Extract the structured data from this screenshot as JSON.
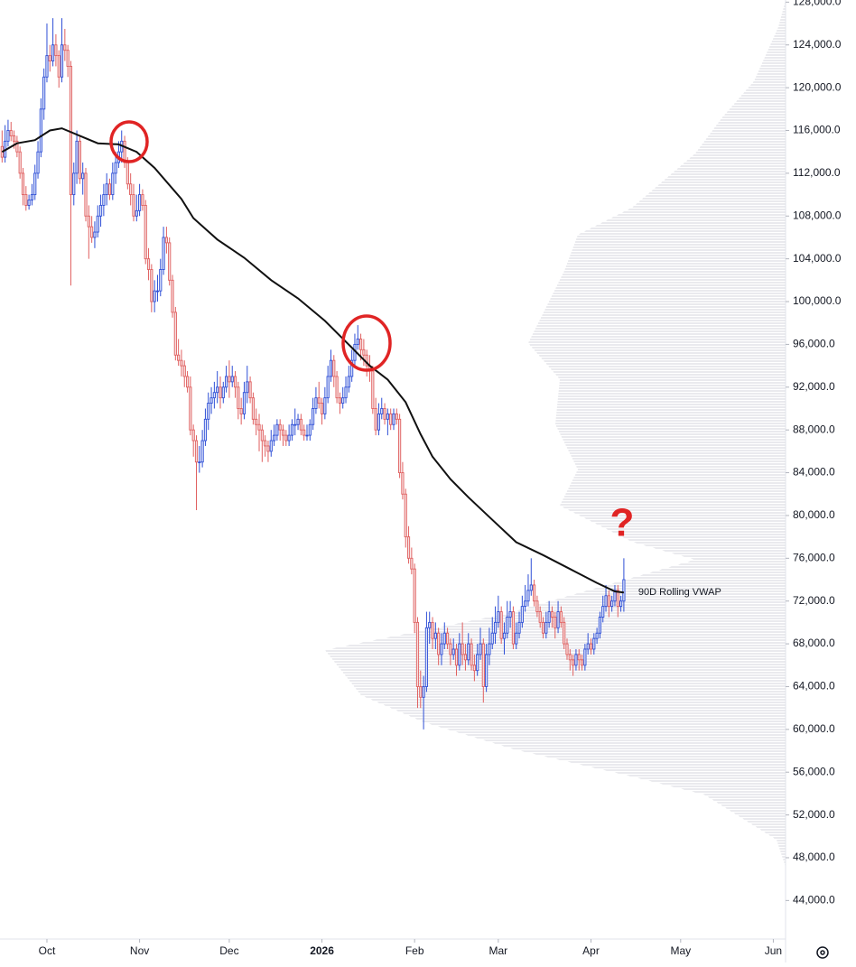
{
  "chart_data": {
    "type": "candlestick",
    "up_color": "#2e4fd6",
    "down_color": "#e06060",
    "xlim": [
      -0.7,
      262.1
    ],
    "ylim": [
      40400,
      128200
    ],
    "xticks": [
      {
        "value": 15,
        "label": "Oct"
      },
      {
        "value": 46,
        "label": "Nov"
      },
      {
        "value": 76,
        "label": "Dec"
      },
      {
        "value": 107,
        "label": "2026",
        "bold": true
      },
      {
        "value": 138,
        "label": "Feb"
      },
      {
        "value": 166,
        "label": "Mar"
      },
      {
        "value": 197,
        "label": "Apr"
      },
      {
        "value": 227,
        "label": "May"
      },
      {
        "value": 258,
        "label": "Jun"
      }
    ],
    "yticks": [
      {
        "value": 44000,
        "label": "44,000.0"
      },
      {
        "value": 48000,
        "label": "48,000.0"
      },
      {
        "value": 52000,
        "label": "52,000.0"
      },
      {
        "value": 56000,
        "label": "56,000.0"
      },
      {
        "value": 60000,
        "label": "60,000.0"
      },
      {
        "value": 64000,
        "label": "64,000.0"
      },
      {
        "value": 68000,
        "label": "68,000.0"
      },
      {
        "value": 72000,
        "label": "72,000.0"
      },
      {
        "value": 76000,
        "label": "76,000.0"
      },
      {
        "value": 80000,
        "label": "80,000.0"
      },
      {
        "value": 84000,
        "label": "84,000.0"
      },
      {
        "value": 88000,
        "label": "88,000.0"
      },
      {
        "value": 92000,
        "label": "92,000.0"
      },
      {
        "value": 96000,
        "label": "96,000.0"
      },
      {
        "value": 100000,
        "label": "100,000.0"
      },
      {
        "value": 104000,
        "label": "104,000.0"
      },
      {
        "value": 108000,
        "label": "108,000.0"
      },
      {
        "value": 112000,
        "label": "112,000.0"
      },
      {
        "value": 116000,
        "label": "116,000.0"
      },
      {
        "value": 120000,
        "label": "120,000.0"
      },
      {
        "value": 124000,
        "label": "124,000.0"
      },
      {
        "value": 128000,
        "label": "128,000.0"
      }
    ],
    "ohlc": [
      [
        114500,
        116000,
        113000,
        113500
      ],
      [
        113500,
        116500,
        113000,
        115000
      ],
      [
        115000,
        117000,
        114500,
        116000
      ],
      [
        116000,
        116800,
        115000,
        115500
      ],
      [
        115500,
        116000,
        114300,
        115000
      ],
      [
        115000,
        115500,
        113500,
        114000
      ],
      [
        114000,
        114500,
        111500,
        112000
      ],
      [
        112000,
        112500,
        109000,
        110000
      ],
      [
        110000,
        110800,
        108500,
        109000
      ],
      [
        109000,
        110000,
        108600,
        109500
      ],
      [
        109500,
        111000,
        109000,
        110000
      ],
      [
        110000,
        112800,
        109500,
        112000
      ],
      [
        112000,
        115000,
        111500,
        114000
      ],
      [
        114000,
        119000,
        113500,
        118000
      ],
      [
        118000,
        121800,
        117000,
        121000
      ],
      [
        121000,
        126000,
        120500,
        123000
      ],
      [
        123000,
        124000,
        121500,
        122500
      ],
      [
        122500,
        126500,
        122000,
        124000
      ],
      [
        124000,
        125000,
        122000,
        123000
      ],
      [
        123000,
        123500,
        120000,
        121000
      ],
      [
        121000,
        126500,
        120500,
        124000
      ],
      [
        124000,
        125500,
        122500,
        123500
      ],
      [
        123500,
        124000,
        121000,
        122000
      ],
      [
        122000,
        122500,
        101500,
        110000
      ],
      [
        110000,
        113000,
        109000,
        112000
      ],
      [
        112000,
        116000,
        111000,
        115000
      ],
      [
        115000,
        115500,
        111000,
        111500
      ],
      [
        111500,
        113000,
        110000,
        112000
      ],
      [
        112000,
        112500,
        107500,
        108000
      ],
      [
        108000,
        109000,
        104000,
        107000
      ],
      [
        107000,
        108000,
        105500,
        106000
      ],
      [
        106000,
        107500,
        105000,
        106500
      ],
      [
        106500,
        109000,
        106000,
        108000
      ],
      [
        108000,
        110000,
        107000,
        109000
      ],
      [
        109000,
        111000,
        108000,
        110000
      ],
      [
        110000,
        112000,
        109000,
        111000
      ],
      [
        111000,
        111500,
        109500,
        110000
      ],
      [
        110000,
        113000,
        109500,
        112000
      ],
      [
        112000,
        114000,
        111000,
        113000
      ],
      [
        113000,
        115000,
        112500,
        114000
      ],
      [
        114000,
        116000,
        113000,
        115000
      ],
      [
        115000,
        115500,
        112500,
        113000
      ],
      [
        113000,
        113500,
        110500,
        111000
      ],
      [
        111000,
        112000,
        109000,
        110000
      ],
      [
        110000,
        111000,
        107500,
        108000
      ],
      [
        108000,
        110000,
        107500,
        108500
      ],
      [
        108500,
        111000,
        108000,
        110000
      ],
      [
        110000,
        110500,
        108500,
        109000
      ],
      [
        109000,
        109500,
        103500,
        104000
      ],
      [
        104000,
        105000,
        102000,
        103000
      ],
      [
        103000,
        103500,
        99000,
        100000
      ],
      [
        100000,
        102000,
        99000,
        101000
      ],
      [
        101000,
        102500,
        100000,
        101000
      ],
      [
        101000,
        104000,
        100500,
        103000
      ],
      [
        103000,
        107000,
        102500,
        106000
      ],
      [
        106000,
        107000,
        104500,
        105500
      ],
      [
        105500,
        106000,
        101500,
        102000
      ],
      [
        102000,
        102500,
        98500,
        99000
      ],
      [
        99000,
        99500,
        94500,
        95000
      ],
      [
        95000,
        96500,
        94000,
        94500
      ],
      [
        94500,
        95500,
        93000,
        94000
      ],
      [
        94000,
        94500,
        92000,
        93000
      ],
      [
        93000,
        93500,
        91500,
        92000
      ],
      [
        92000,
        93000,
        87500,
        88000
      ],
      [
        88000,
        88500,
        85500,
        87000
      ],
      [
        87000,
        87500,
        80500,
        85000
      ],
      [
        85000,
        86500,
        84000,
        85000
      ],
      [
        85000,
        88000,
        84500,
        87000
      ],
      [
        87000,
        90000,
        86500,
        89000
      ],
      [
        89000,
        91500,
        88000,
        90500
      ],
      [
        90500,
        92000,
        89500,
        91000
      ],
      [
        91000,
        92500,
        90000,
        91500
      ],
      [
        91500,
        93500,
        90500,
        92000
      ],
      [
        92000,
        93000,
        90000,
        91000
      ],
      [
        91000,
        92500,
        90500,
        92000
      ],
      [
        92000,
        94000,
        91500,
        93000
      ],
      [
        93000,
        94500,
        91000,
        92500
      ],
      [
        92500,
        94000,
        92000,
        93000
      ],
      [
        93000,
        93500,
        91000,
        92000
      ],
      [
        92000,
        92500,
        89000,
        90000
      ],
      [
        90000,
        91000,
        88500,
        89500
      ],
      [
        89500,
        92500,
        89000,
        91500
      ],
      [
        91500,
        94000,
        90500,
        92500
      ],
      [
        92500,
        93000,
        90500,
        91000
      ],
      [
        91000,
        91500,
        88500,
        89000
      ],
      [
        89000,
        90000,
        87500,
        88500
      ],
      [
        88500,
        89500,
        86000,
        88000
      ],
      [
        88000,
        88500,
        85000,
        87000
      ],
      [
        87000,
        87500,
        85500,
        86500
      ],
      [
        86500,
        87000,
        85000,
        86000
      ],
      [
        86000,
        88000,
        85500,
        87000
      ],
      [
        87000,
        88500,
        86500,
        87500
      ],
      [
        87500,
        89000,
        87000,
        88500
      ],
      [
        88500,
        89000,
        87000,
        88000
      ],
      [
        88000,
        88500,
        86500,
        87500
      ],
      [
        87500,
        88000,
        86500,
        87000
      ],
      [
        87000,
        88500,
        86500,
        87500
      ],
      [
        87500,
        89000,
        87000,
        88500
      ],
      [
        88500,
        90000,
        87500,
        88500
      ],
      [
        88500,
        89500,
        88000,
        89000
      ],
      [
        89000,
        89500,
        87500,
        88000
      ],
      [
        88000,
        88500,
        87000,
        87500
      ],
      [
        87500,
        88500,
        87000,
        87500
      ],
      [
        87500,
        89000,
        87000,
        88500
      ],
      [
        88500,
        91000,
        88000,
        90000
      ],
      [
        90000,
        92000,
        89500,
        91000
      ],
      [
        91000,
        92500,
        90000,
        90500
      ],
      [
        90500,
        91000,
        88500,
        89500
      ],
      [
        89500,
        92000,
        89000,
        91000
      ],
      [
        91000,
        94000,
        90500,
        93000
      ],
      [
        93000,
        95500,
        92500,
        94500
      ],
      [
        94500,
        95000,
        92000,
        93000
      ],
      [
        93000,
        93500,
        90500,
        91000
      ],
      [
        91000,
        91500,
        89500,
        90500
      ],
      [
        90500,
        92000,
        90000,
        91000
      ],
      [
        91000,
        93000,
        90500,
        92000
      ],
      [
        92000,
        94000,
        91500,
        93000
      ],
      [
        93000,
        95500,
        92500,
        94500
      ],
      [
        94500,
        97000,
        94000,
        96000
      ],
      [
        96000,
        97800,
        95500,
        96500
      ],
      [
        96500,
        97000,
        94500,
        95500
      ],
      [
        95500,
        96500,
        94000,
        95000
      ],
      [
        95000,
        95500,
        93000,
        94000
      ],
      [
        94000,
        95000,
        92500,
        93500
      ],
      [
        93500,
        94000,
        89500,
        90000
      ],
      [
        90000,
        91000,
        87500,
        88000
      ],
      [
        88000,
        90500,
        87500,
        89500
      ],
      [
        89500,
        91000,
        89000,
        90000
      ],
      [
        90000,
        90500,
        88500,
        89000
      ],
      [
        89000,
        90000,
        87500,
        89500
      ],
      [
        89500,
        90000,
        88000,
        88500
      ],
      [
        88500,
        90000,
        88000,
        89500
      ],
      [
        89500,
        90000,
        88500,
        89000
      ],
      [
        89000,
        89500,
        83500,
        84000
      ],
      [
        84000,
        85000,
        81500,
        82000
      ],
      [
        82000,
        82500,
        77000,
        78000
      ],
      [
        78000,
        79000,
        75500,
        76000
      ],
      [
        76000,
        77000,
        74500,
        75000
      ],
      [
        75000,
        75500,
        69000,
        70000
      ],
      [
        70000,
        70500,
        62000,
        64000
      ],
      [
        64000,
        65500,
        62000,
        63000
      ],
      [
        63000,
        65000,
        60000,
        64000
      ],
      [
        64000,
        71000,
        63500,
        69500
      ],
      [
        69500,
        71000,
        68000,
        70000
      ],
      [
        70000,
        70500,
        67500,
        68500
      ],
      [
        68500,
        70000,
        67500,
        69000
      ],
      [
        69000,
        69500,
        66000,
        67000
      ],
      [
        67000,
        69000,
        66000,
        68000
      ],
      [
        68000,
        70000,
        67500,
        69000
      ],
      [
        69000,
        69500,
        67500,
        68000
      ],
      [
        68000,
        68500,
        66000,
        67000
      ],
      [
        67000,
        68500,
        66500,
        67500
      ],
      [
        67500,
        68000,
        65000,
        66000
      ],
      [
        66000,
        69000,
        65500,
        68000
      ],
      [
        68000,
        70000,
        66000,
        67000
      ],
      [
        67000,
        68000,
        65500,
        66500
      ],
      [
        66500,
        69000,
        66000,
        68000
      ],
      [
        68000,
        68500,
        65500,
        66000
      ],
      [
        66000,
        67000,
        64500,
        65500
      ],
      [
        65500,
        68000,
        65000,
        67000
      ],
      [
        67000,
        69500,
        66500,
        68000
      ],
      [
        68000,
        68500,
        62500,
        64000
      ],
      [
        64000,
        68000,
        63500,
        67000
      ],
      [
        67000,
        69500,
        66000,
        68000
      ],
      [
        68000,
        70500,
        67500,
        69000
      ],
      [
        69000,
        71500,
        68000,
        70000
      ],
      [
        70000,
        72500,
        69500,
        71000
      ],
      [
        71000,
        71500,
        68000,
        68500
      ],
      [
        68500,
        70000,
        67000,
        69000
      ],
      [
        69000,
        72000,
        68500,
        70500
      ],
      [
        70500,
        72000,
        69500,
        71000
      ],
      [
        71000,
        71500,
        67500,
        68000
      ],
      [
        68000,
        70000,
        67500,
        69000
      ],
      [
        69000,
        71000,
        68500,
        70000
      ],
      [
        70000,
        72500,
        69500,
        71500
      ],
      [
        71500,
        73500,
        71000,
        72000
      ],
      [
        72000,
        74500,
        71500,
        73000
      ],
      [
        73000,
        76000,
        72500,
        73500
      ],
      [
        73500,
        74000,
        71500,
        72000
      ],
      [
        72000,
        72500,
        70500,
        71000
      ],
      [
        71000,
        71500,
        69500,
        70000
      ],
      [
        70000,
        70500,
        68500,
        69000
      ],
      [
        69000,
        71000,
        68500,
        70000
      ],
      [
        70000,
        72000,
        69500,
        71000
      ],
      [
        71000,
        71500,
        69500,
        70500
      ],
      [
        70500,
        71000,
        68500,
        69500
      ],
      [
        69500,
        72000,
        69000,
        71000
      ],
      [
        71000,
        71500,
        69500,
        70000
      ],
      [
        70000,
        70500,
        67500,
        68000
      ],
      [
        68000,
        68500,
        66500,
        67000
      ],
      [
        67000,
        67500,
        65500,
        66500
      ],
      [
        66500,
        67000,
        65000,
        66000
      ],
      [
        66000,
        67500,
        65500,
        67000
      ],
      [
        67000,
        67500,
        65500,
        66500
      ],
      [
        66500,
        67000,
        65500,
        66000
      ],
      [
        66000,
        68000,
        65500,
        67500
      ],
      [
        67500,
        69000,
        67000,
        68000
      ],
      [
        68000,
        68500,
        67000,
        67500
      ],
      [
        67500,
        69000,
        67000,
        68500
      ],
      [
        68500,
        69500,
        68000,
        69000
      ],
      [
        69000,
        71000,
        68500,
        70500
      ],
      [
        70500,
        72500,
        70000,
        71500
      ],
      [
        71500,
        73500,
        71000,
        72500
      ],
      [
        72500,
        73000,
        70500,
        71500
      ],
      [
        71500,
        72500,
        71000,
        72000
      ],
      [
        72000,
        73500,
        71500,
        73000
      ],
      [
        73000,
        73500,
        70500,
        71500
      ],
      [
        71500,
        72500,
        71000,
        72000
      ],
      [
        72000,
        76000,
        71000,
        74000
      ]
    ],
    "overlays": [
      {
        "label": "90D Rolling VWAP",
        "color": "#111111",
        "x": [
          0,
          5,
          11,
          16,
          20,
          26,
          32,
          39,
          45,
          51,
          60,
          64,
          72,
          81,
          90,
          99,
          108,
          117,
          123,
          129,
          135,
          140,
          144,
          150,
          156,
          164,
          172,
          181,
          190,
          199,
          205,
          208
        ],
        "values": [
          114000,
          114800,
          115100,
          116000,
          116200,
          115500,
          114800,
          114700,
          114000,
          112500,
          109600,
          107800,
          105800,
          104100,
          102000,
          100300,
          98200,
          95700,
          94000,
          92700,
          90600,
          87600,
          85500,
          83400,
          81700,
          79600,
          77500,
          76300,
          75000,
          73700,
          72900,
          72800
        ]
      }
    ],
    "annotation": "?"
  }
}
